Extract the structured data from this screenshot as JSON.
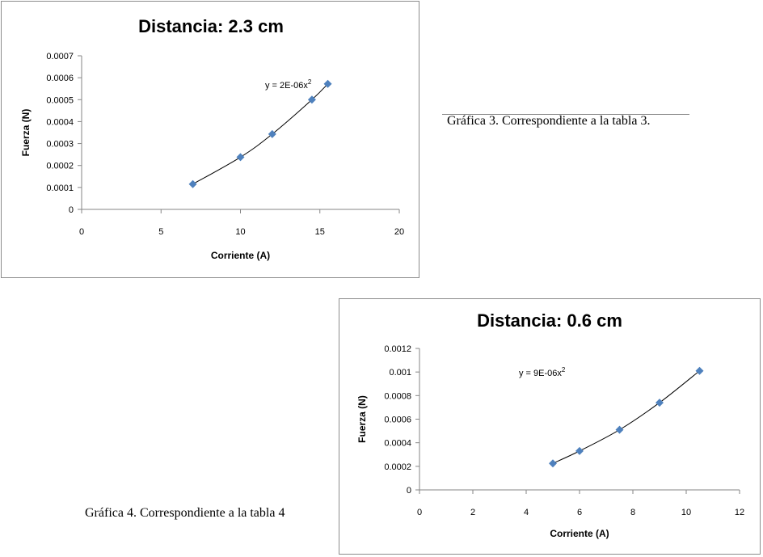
{
  "captions": {
    "graph3": "Gráfica 3. Correspondiente a la tabla 3.",
    "graph4": "Gráfica 4. Correspondiente a la tabla 4"
  },
  "chart_data": [
    {
      "type": "scatter",
      "title": "Distancia: 2.3 cm",
      "xlabel": "Corriente (A)",
      "ylabel": "Fuerza (N)",
      "xlim": [
        0,
        20
      ],
      "ylim": [
        0,
        0.0007
      ],
      "xticks": [
        "0",
        "5",
        "10",
        "15",
        "20"
      ],
      "yticks": [
        "0",
        "0.0001",
        "0.0002",
        "0.0003",
        "0.0004",
        "0.0005",
        "0.0006",
        "0.0007"
      ],
      "x": [
        7,
        10,
        12,
        14.5,
        15.5
      ],
      "y": [
        0.000115,
        0.000238,
        0.000343,
        0.0005,
        0.000572
      ],
      "marker_color": "#4f81bd",
      "trendline": {
        "type": "power",
        "equation": "y = 2E-06x",
        "exponent": "2"
      },
      "grid": false,
      "legend": "none"
    },
    {
      "type": "scatter",
      "title": "Distancia: 0.6 cm",
      "xlabel": "Corriente (A)",
      "ylabel": "Fuerza (N)",
      "xlim": [
        0,
        12
      ],
      "ylim": [
        0,
        0.0012
      ],
      "xticks": [
        "0",
        "2",
        "4",
        "6",
        "8",
        "10",
        "12"
      ],
      "yticks": [
        "0",
        "0.0002",
        "0.0004",
        "0.0006",
        "0.0008",
        "0.001",
        "0.0012"
      ],
      "x": [
        5,
        6,
        7.5,
        9,
        10.5
      ],
      "y": [
        0.000225,
        0.00033,
        0.00051,
        0.00074,
        0.00101
      ],
      "marker_color": "#4f81bd",
      "trendline": {
        "type": "power",
        "equation": "y = 9E-06x",
        "exponent": "2"
      },
      "grid": false,
      "legend": "none"
    }
  ]
}
